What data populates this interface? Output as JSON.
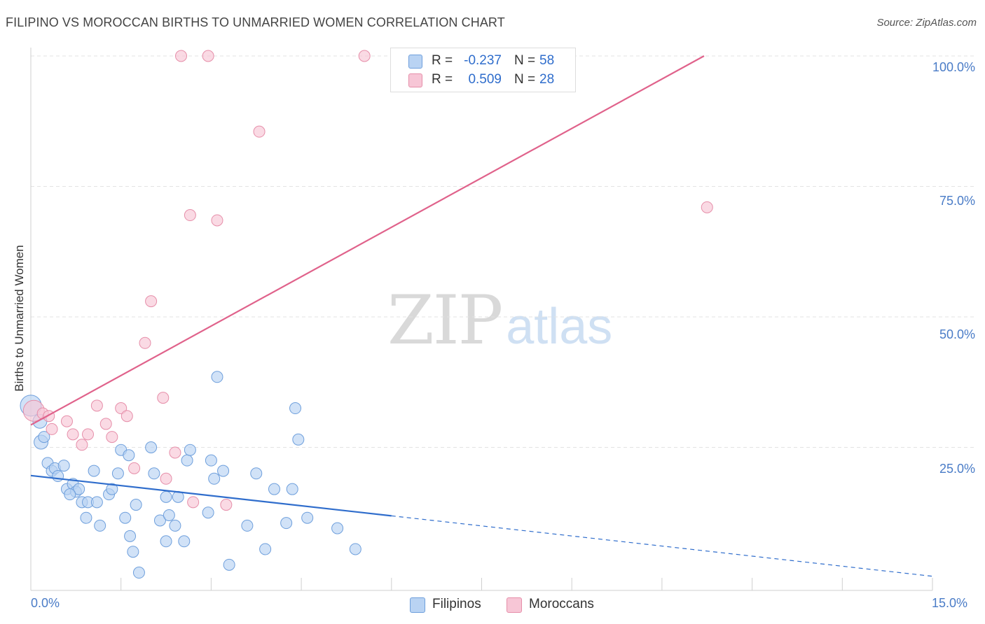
{
  "title": "FILIPINO VS MOROCCAN BIRTHS TO UNMARRIED WOMEN CORRELATION CHART",
  "source": "Source: ZipAtlas.com",
  "watermark": {
    "part1": "ZIP",
    "part2": "atlas"
  },
  "colors": {
    "filipinos_fill": "#b9d3f3",
    "filipinos_stroke": "#6e9fdc",
    "filipinos_line": "#2f6dcc",
    "moroccans_fill": "#f7c6d6",
    "moroccans_stroke": "#e68ea9",
    "moroccans_line": "#e0628b",
    "axis_text": "#4a7cc7",
    "grid": "#e3e3e3"
  },
  "stats": {
    "filipinos": {
      "r_label": "R =",
      "r_value": "-0.237",
      "n_label": "N =",
      "n_value": "58"
    },
    "moroccans": {
      "r_label": "R =",
      "r_value": "0.509",
      "n_label": "N =",
      "n_value": "28"
    }
  },
  "legend": {
    "filipinos": "Filipinos",
    "moroccans": "Moroccans"
  },
  "chart_data": {
    "type": "scatter",
    "title": "FILIPINO VS MOROCCAN BIRTHS TO UNMARRIED WOMEN CORRELATION CHART",
    "xlabel": "",
    "ylabel": "Births to Unmarried Women",
    "xlim": [
      0,
      15
    ],
    "ylim": [
      0,
      100
    ],
    "x_tick_labels": [
      "0.0%",
      "15.0%"
    ],
    "y_ticks": [
      25,
      50,
      75,
      100
    ],
    "y_tick_labels": [
      "25.0%",
      "50.0%",
      "75.0%",
      "100.0%"
    ],
    "grid": true,
    "legend_position": "bottom-center",
    "series": [
      {
        "name": "Filipinos",
        "r": -0.237,
        "n": 58,
        "trend": {
          "start": [
            0,
            19.6
          ],
          "end": [
            15,
            0.3
          ],
          "solid_until_x": 6.0
        },
        "points": [
          [
            0.0,
            33.0,
            "L"
          ],
          [
            0.15,
            30.0,
            "M"
          ],
          [
            0.17,
            26.0,
            "M"
          ],
          [
            0.22,
            27.0,
            "S"
          ],
          [
            0.28,
            22.0,
            "S"
          ],
          [
            0.35,
            20.5,
            "S"
          ],
          [
            0.4,
            21.0,
            "S"
          ],
          [
            0.55,
            21.5,
            "S"
          ],
          [
            0.45,
            19.5,
            "S"
          ],
          [
            0.6,
            17.0,
            "S"
          ],
          [
            0.7,
            18.0,
            "S"
          ],
          [
            0.75,
            16.5,
            "S"
          ],
          [
            0.8,
            17.0,
            "S"
          ],
          [
            0.85,
            14.5,
            "S"
          ],
          [
            0.95,
            14.5,
            "S"
          ],
          [
            1.1,
            14.5,
            "S"
          ],
          [
            0.92,
            11.5,
            "S"
          ],
          [
            1.15,
            10.0,
            "S"
          ],
          [
            1.05,
            20.5,
            "S"
          ],
          [
            1.3,
            16.0,
            "S"
          ],
          [
            1.35,
            17.0,
            "S"
          ],
          [
            1.45,
            20.0,
            "S"
          ],
          [
            1.5,
            24.5,
            "S"
          ],
          [
            1.57,
            11.5,
            "S"
          ],
          [
            1.63,
            23.5,
            "S"
          ],
          [
            1.65,
            8.0,
            "S"
          ],
          [
            1.7,
            5.0,
            "S"
          ],
          [
            1.75,
            14.0,
            "S"
          ],
          [
            1.8,
            1.0,
            "S"
          ],
          [
            2.0,
            25.0,
            "S"
          ],
          [
            2.05,
            20.0,
            "S"
          ],
          [
            2.15,
            11.0,
            "S"
          ],
          [
            2.25,
            7.0,
            "S"
          ],
          [
            2.3,
            12.0,
            "S"
          ],
          [
            2.4,
            10.0,
            "S"
          ],
          [
            2.45,
            15.5,
            "S"
          ],
          [
            2.55,
            7.0,
            "S"
          ],
          [
            2.6,
            22.5,
            "S"
          ],
          [
            2.65,
            24.5,
            "S"
          ],
          [
            2.95,
            12.5,
            "S"
          ],
          [
            3.0,
            22.5,
            "S"
          ],
          [
            3.05,
            19.0,
            "S"
          ],
          [
            3.2,
            20.5,
            "S"
          ],
          [
            3.3,
            2.5,
            "S"
          ],
          [
            3.1,
            38.5,
            "S"
          ],
          [
            3.6,
            10.0,
            "S"
          ],
          [
            3.75,
            20.0,
            "S"
          ],
          [
            3.9,
            5.5,
            "S"
          ],
          [
            4.05,
            17.0,
            "S"
          ],
          [
            4.25,
            10.5,
            "S"
          ],
          [
            4.35,
            17.0,
            "S"
          ],
          [
            4.4,
            32.5,
            "S"
          ],
          [
            4.45,
            26.5,
            "S"
          ],
          [
            4.6,
            11.5,
            "S"
          ],
          [
            5.1,
            9.5,
            "S"
          ],
          [
            5.4,
            5.5,
            "S"
          ],
          [
            0.65,
            16.0,
            "S"
          ],
          [
            2.25,
            15.5,
            "S"
          ]
        ]
      },
      {
        "name": "Moroccans",
        "r": 0.509,
        "n": 28,
        "trend": {
          "start": [
            0,
            29.3
          ],
          "end": [
            11.2,
            100.0
          ]
        },
        "points": [
          [
            0.05,
            32.0,
            "L"
          ],
          [
            0.2,
            31.5,
            "S"
          ],
          [
            0.3,
            31.0,
            "S"
          ],
          [
            0.35,
            28.5,
            "S"
          ],
          [
            0.6,
            30.0,
            "S"
          ],
          [
            0.7,
            27.5,
            "S"
          ],
          [
            0.85,
            25.5,
            "S"
          ],
          [
            0.95,
            27.5,
            "S"
          ],
          [
            1.1,
            33.0,
            "S"
          ],
          [
            1.25,
            29.5,
            "S"
          ],
          [
            1.35,
            27.0,
            "S"
          ],
          [
            1.5,
            32.5,
            "S"
          ],
          [
            1.6,
            31.0,
            "S"
          ],
          [
            1.72,
            21.0,
            "S"
          ],
          [
            1.9,
            45.0,
            "S"
          ],
          [
            2.0,
            53.0,
            "S"
          ],
          [
            2.2,
            34.5,
            "S"
          ],
          [
            2.25,
            19.0,
            "S"
          ],
          [
            2.4,
            24.0,
            "S"
          ],
          [
            2.7,
            14.5,
            "S"
          ],
          [
            2.65,
            69.5,
            "S"
          ],
          [
            3.1,
            68.5,
            "S"
          ],
          [
            3.25,
            14.0,
            "S"
          ],
          [
            3.8,
            85.5,
            "S"
          ],
          [
            2.5,
            100.0,
            "S"
          ],
          [
            2.95,
            100.0,
            "S"
          ],
          [
            5.55,
            100.0,
            "S"
          ],
          [
            11.25,
            71.0,
            "S"
          ]
        ]
      }
    ]
  }
}
